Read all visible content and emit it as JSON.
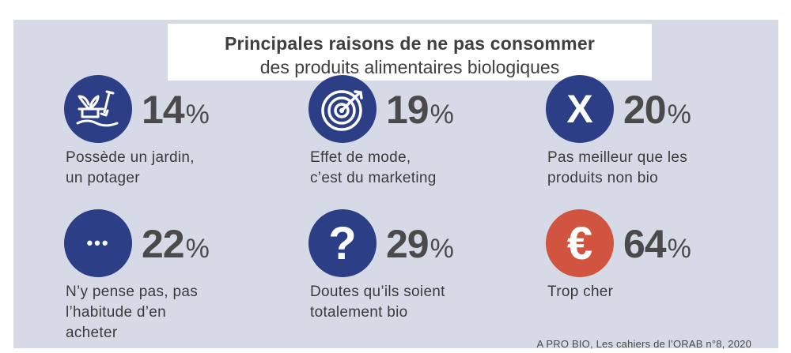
{
  "title": {
    "line1": "Principales raisons de ne pas consommer",
    "line2": "des produits alimentaires biologiques"
  },
  "colors": {
    "background": "#d5dae6",
    "circle_blue": "#2c3e86",
    "circle_red": "#d0543f",
    "text": "#3f3f3f"
  },
  "chart_data": {
    "type": "table",
    "title": "Principales raisons de ne pas consommer des produits alimentaires biologiques",
    "unit": "%",
    "items": [
      {
        "value": 14,
        "label_lines": [
          "Possède un jardin,",
          "un potager"
        ],
        "icon": "garden-icon",
        "color": "#2c3e86"
      },
      {
        "value": 19,
        "label_lines": [
          "Effet de mode,",
          "c’est du marketing"
        ],
        "icon": "target-icon",
        "color": "#2c3e86"
      },
      {
        "value": 20,
        "label_lines": [
          "Pas meilleur que les",
          "produits non bio"
        ],
        "icon": "x-icon",
        "glyph": "X",
        "color": "#2c3e86"
      },
      {
        "value": 22,
        "label_lines": [
          "N’y pense pas, pas",
          "l’habitude d’en",
          "acheter"
        ],
        "icon": "ellipsis-icon",
        "glyph": "•••",
        "color": "#2c3e86"
      },
      {
        "value": 29,
        "label_lines": [
          "Doutes qu’ils soient",
          "totalement bio"
        ],
        "icon": "question-icon",
        "glyph": "?",
        "color": "#2c3e86"
      },
      {
        "value": 64,
        "label_lines": [
          "Trop cher"
        ],
        "icon": "euro-icon",
        "glyph": "€",
        "color": "#d0543f"
      }
    ]
  },
  "source": "A PRO BIO, Les cahiers de l’ORAB n°8, 2020"
}
